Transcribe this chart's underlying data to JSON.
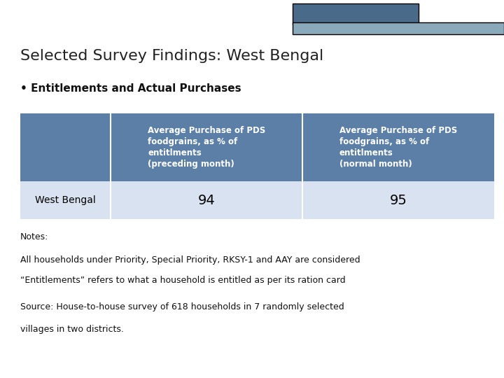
{
  "title": "Selected Survey Findings: West Bengal",
  "subtitle": "• Entitlements and Actual Purchases",
  "header_bg": "#5b7fa6",
  "header_text_color": "#ffffff",
  "row_bg": "#d9e2f0",
  "row_text_color": "#000000",
  "col1_header": "Average Purchase of PDS\nfoodgrains, as % of\nentitlments\n(preceding month)",
  "col2_header": "Average Purchase of PDS\nfoodgrains, as % of\nentitlments\n(normal month)",
  "row_label": "West Bengal",
  "val1": "94",
  "val2": "95",
  "notes_line1": "Notes:",
  "notes_line2": "All households under Priority, Special Priority, RKSY-1 and AAY are considered",
  "notes_line3": "“Entitlements” refers to what a household is entitled as per its ration card",
  "source_line1": "Source: House-to-house survey of 618 households in 7 randomly selected",
  "source_line2": "villages in two districts.",
  "top_bar_color1": "#4a6a8a",
  "top_bar_color2": "#8aaabb",
  "bg_color": "#ffffff"
}
